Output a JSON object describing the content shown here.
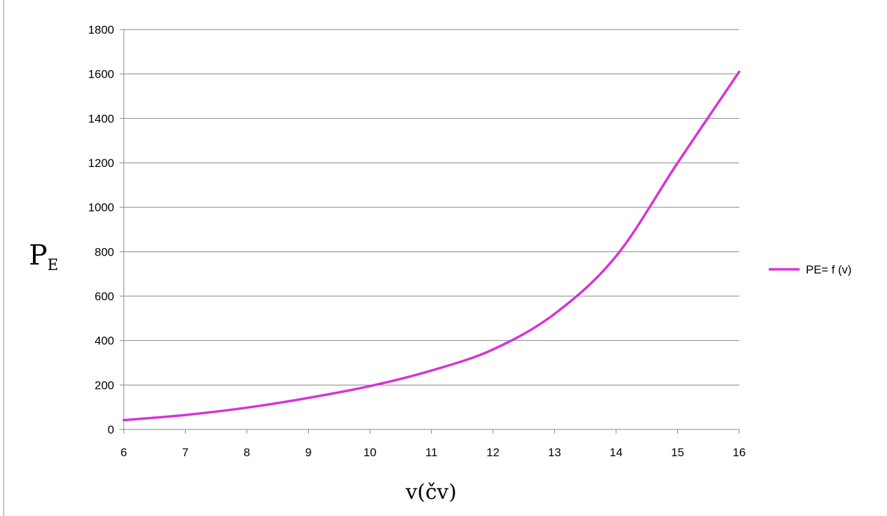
{
  "chart_data": {
    "type": "line",
    "title": "",
    "xlabel": "v(čv)",
    "ylabel": {
      "main": "P",
      "subscript": "E"
    },
    "xlim": [
      6,
      16
    ],
    "ylim": [
      0,
      1800
    ],
    "x_ticks": [
      6,
      7,
      8,
      9,
      10,
      11,
      12,
      13,
      14,
      15,
      16
    ],
    "y_ticks": [
      0,
      200,
      400,
      600,
      800,
      1000,
      1200,
      1400,
      1600,
      1800
    ],
    "grid": {
      "horizontal": true,
      "vertical": false
    },
    "legend": {
      "placement": "right"
    },
    "series": [
      {
        "name": "PE= f (v)",
        "color": "#d633d6",
        "x": [
          6,
          7,
          8,
          9,
          10,
          11,
          12,
          13,
          14,
          15,
          16
        ],
        "y": [
          42,
          65,
          98,
          142,
          195,
          265,
          360,
          520,
          780,
          1200,
          1610
        ]
      }
    ]
  }
}
